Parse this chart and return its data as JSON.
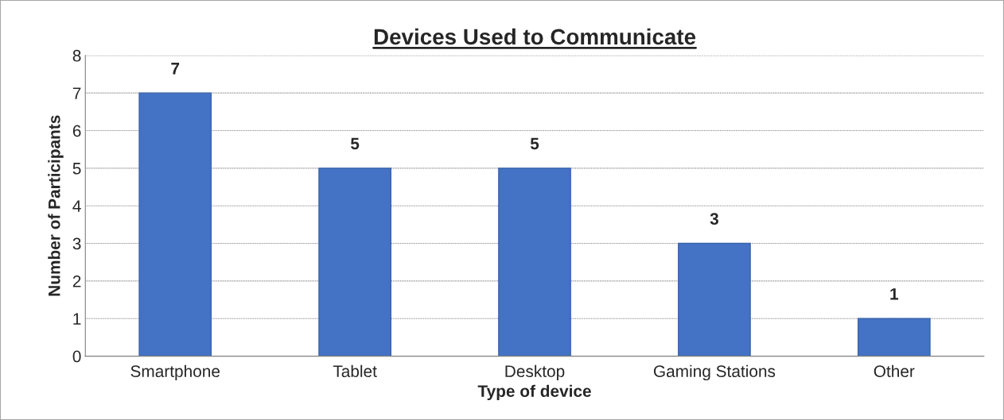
{
  "chart_data": {
    "type": "bar",
    "title": "Devices Used to Communicate",
    "xlabel": "Type of device",
    "ylabel": "Number of Participants",
    "categories": [
      "Smartphone",
      "Tablet",
      "Desktop",
      "Gaming Stations",
      "Other"
    ],
    "values": [
      7,
      5,
      5,
      3,
      1
    ],
    "color": "#4472c4",
    "ylim": [
      0,
      8
    ],
    "yticks": [
      0,
      1,
      2,
      3,
      4,
      5,
      6,
      7,
      8
    ],
    "grid": "y",
    "data_labels": true
  }
}
